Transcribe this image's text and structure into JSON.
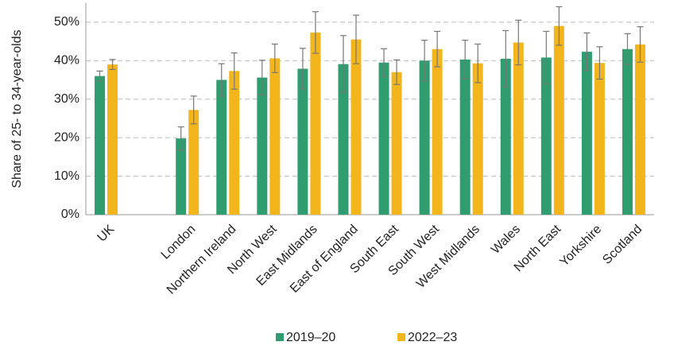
{
  "chart_data": {
    "type": "bar",
    "y_label": "Share of 25- to 34-year-olds",
    "categories": [
      "UK",
      null,
      "London",
      "Northern Ireland",
      "North West",
      "East Midlands",
      "East of England",
      "South East",
      "South West",
      "West Midlands",
      "Wales",
      "North East",
      "Yorkshire",
      "Scotland"
    ],
    "series": [
      {
        "name": "2019–20",
        "color": "#2f9d6f",
        "values": [
          36,
          null,
          19.8,
          35,
          35.6,
          37.9,
          39.1,
          39.5,
          40,
          40.3,
          40.5,
          40.8,
          42.3,
          43
        ],
        "errors": [
          1.3,
          null,
          3,
          4.2,
          4.5,
          5.3,
          7.4,
          3.6,
          5.3,
          5,
          7.3,
          6.8,
          4.9,
          4
        ]
      },
      {
        "name": "2022–23",
        "color": "#f2b51c",
        "values": [
          39,
          null,
          27.2,
          37.3,
          40.6,
          47.3,
          45.5,
          37,
          43,
          39.3,
          44.7,
          49,
          39.4,
          44.2
        ],
        "errors": [
          1.3,
          null,
          3.6,
          4.7,
          3.7,
          5.4,
          6.3,
          3.2,
          4.6,
          5,
          5.8,
          5,
          4.2,
          4.6
        ]
      }
    ],
    "ylim": [
      0,
      55
    ],
    "yticks": [
      {
        "value": 0,
        "label": "0%"
      },
      {
        "value": 10,
        "label": "10%"
      },
      {
        "value": 20,
        "label": "20%"
      },
      {
        "value": 30,
        "label": "30%"
      },
      {
        "value": 40,
        "label": "40%"
      },
      {
        "value": 50,
        "label": "50%"
      }
    ],
    "grid": true,
    "legend": "bottom"
  }
}
